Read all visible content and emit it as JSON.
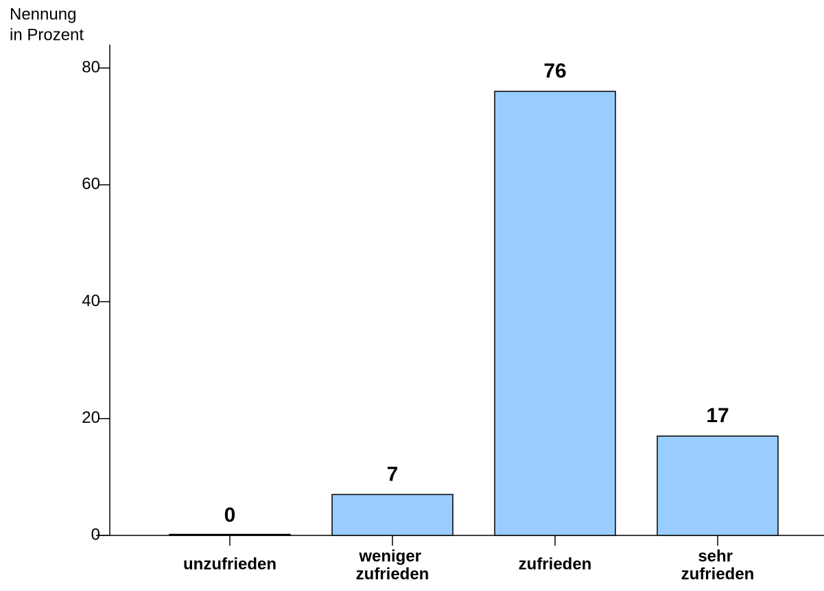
{
  "chart_data": {
    "type": "bar",
    "ylabel": [
      "Nennung",
      "in Prozent"
    ],
    "categories": [
      "unzufrieden",
      "weniger zufrieden",
      "zufrieden",
      "sehr zufrieden"
    ],
    "values": [
      0,
      7,
      76,
      17
    ],
    "color": "#99ccff",
    "ylim": [
      0,
      84
    ],
    "yticks": [
      0,
      20,
      40,
      60,
      80
    ],
    "grid": false
  }
}
